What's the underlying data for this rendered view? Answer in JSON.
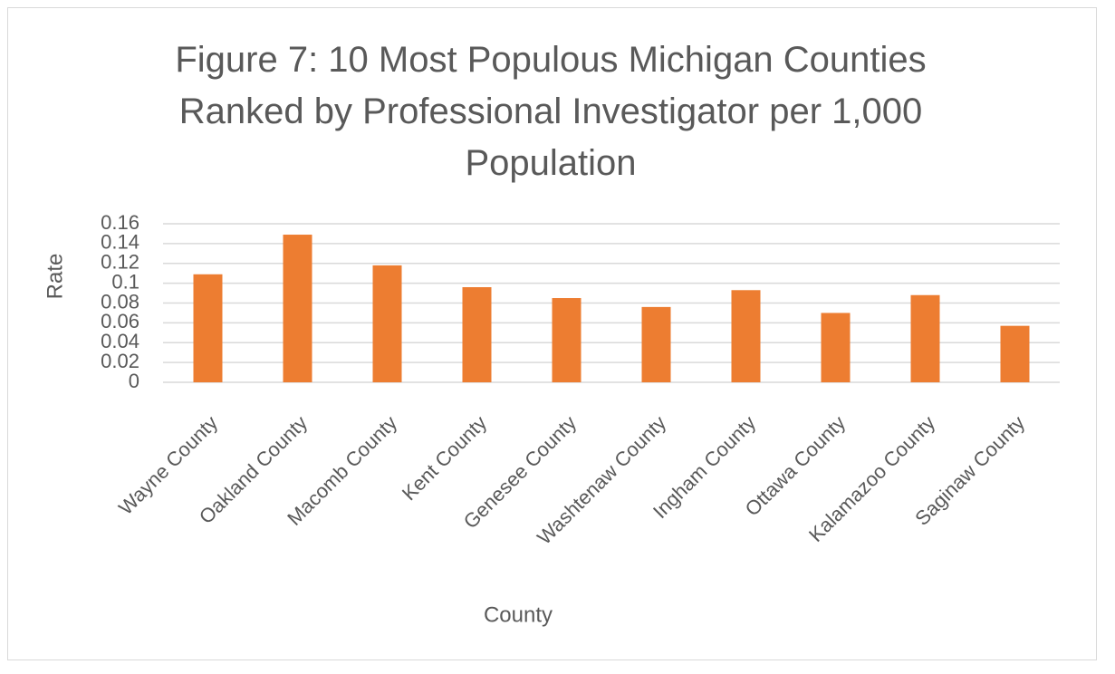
{
  "chart_data": {
    "type": "bar",
    "title": "Figure 7: 10 Most Populous Michigan Counties Ranked by Professional Investigator per 1,000 Population",
    "x_label": "County",
    "y_label": "Rate",
    "categories": [
      "Wayne County",
      "Oakland County",
      "Macomb County",
      "Kent County",
      "Genesee County",
      "Washtenaw County",
      "Ingham County",
      "Ottawa County",
      "Kalamazoo County",
      "Saginaw County"
    ],
    "values": [
      0.109,
      0.149,
      0.118,
      0.096,
      0.085,
      0.076,
      0.093,
      0.07,
      0.088,
      0.057
    ],
    "color": "#ed7d31",
    "ylim": [
      0,
      0.16
    ],
    "yticks": [
      0,
      0.02,
      0.04,
      0.06,
      0.08,
      0.1,
      0.12,
      0.14,
      0.16
    ],
    "grid": true
  }
}
